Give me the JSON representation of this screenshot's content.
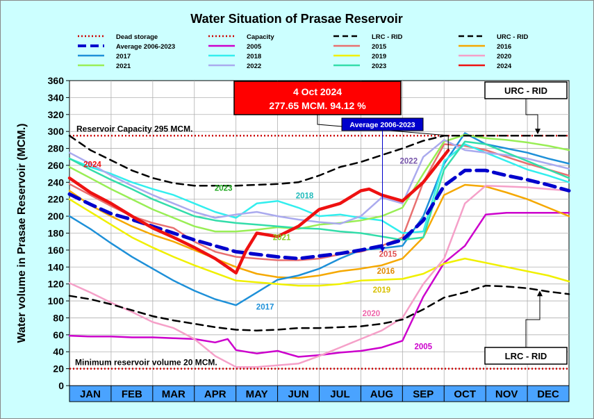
{
  "chart_data": {
    "type": "line",
    "title": "Water Situation of Prasae Reservoir",
    "ylabel": "Water volume in Prasae Reservoir (MCM.)",
    "xlabel": "",
    "ylim": [
      0,
      360
    ],
    "yticks": [
      0,
      20,
      40,
      60,
      80,
      100,
      120,
      140,
      160,
      180,
      200,
      220,
      240,
      260,
      280,
      300,
      320,
      340,
      360
    ],
    "categories": [
      "JAN",
      "FEB",
      "MAR",
      "APR",
      "MAY",
      "JUN",
      "JUL",
      "AUG",
      "SEP",
      "OCT",
      "NOV",
      "DEC"
    ],
    "x_unit": "month index (0 = start of JAN, 12 = end of DEC)",
    "grid": true,
    "legend_position": "top",
    "reference_lines": [
      {
        "name": "Dead storage",
        "y": 20,
        "color": "#cc0000",
        "style": "dotted"
      },
      {
        "name": "Capacity",
        "y": 295,
        "color": "#cc0000",
        "style": "dotted"
      }
    ],
    "series": [
      {
        "name": "Dead storage",
        "color": "#cc0000",
        "style": "dotted",
        "width": 2.5,
        "x": [
          0,
          12
        ],
        "y": [
          20,
          20
        ]
      },
      {
        "name": "Capacity",
        "color": "#cc0000",
        "style": "dotted",
        "width": 2.5,
        "x": [
          0,
          12
        ],
        "y": [
          295,
          295
        ]
      },
      {
        "name": "LRC - RID",
        "color": "#000000",
        "style": "dashed",
        "width": 2.5,
        "x": [
          0,
          0.5,
          1,
          1.5,
          2,
          2.5,
          3,
          3.5,
          4,
          4.5,
          5,
          5.5,
          6,
          6.5,
          7,
          7.5,
          8,
          8.5,
          9,
          9.5,
          10,
          10.5,
          11,
          11.5,
          12
        ],
        "y": [
          106,
          102,
          96,
          89,
          82,
          77,
          73,
          69,
          66,
          65,
          66,
          68,
          68,
          69,
          70,
          73,
          78,
          90,
          104,
          110,
          118,
          117,
          115,
          111,
          108
        ]
      },
      {
        "name": "URC - RID",
        "color": "#000000",
        "style": "dashed",
        "width": 2.5,
        "x": [
          0,
          0.5,
          1,
          1.5,
          2,
          2.5,
          3,
          3.5,
          4,
          4.5,
          5,
          5.5,
          6,
          6.5,
          7,
          7.5,
          8,
          8.5,
          9,
          9.5,
          10,
          10.5,
          11,
          11.5,
          12
        ],
        "y": [
          295,
          278,
          266,
          254,
          245,
          239,
          236,
          236,
          236,
          237,
          238,
          240,
          248,
          258,
          264,
          272,
          280,
          289,
          295,
          295,
          295,
          295,
          295,
          295,
          295
        ]
      },
      {
        "name": "Average 2006-2023",
        "color": "#0000cc",
        "style": "dashed-thick",
        "width": 5,
        "x": [
          0,
          0.5,
          1,
          1.5,
          2,
          2.5,
          3,
          3.5,
          4,
          4.5,
          5,
          5.5,
          6,
          6.5,
          7,
          7.5,
          8,
          8.5,
          9,
          9.5,
          10,
          10.5,
          11,
          11.5,
          12
        ],
        "y": [
          226,
          214,
          203,
          196,
          188,
          180,
          172,
          165,
          158,
          155,
          152,
          150,
          153,
          156,
          160,
          165,
          172,
          195,
          236,
          254,
          254,
          248,
          243,
          237,
          230
        ]
      },
      {
        "name": "2005",
        "color": "#cc00cc",
        "style": "solid",
        "width": 2.5,
        "x": [
          0,
          0.5,
          1,
          1.5,
          2,
          2.5,
          3,
          3.5,
          3.8,
          4,
          4.5,
          5,
          5.5,
          6,
          6.5,
          7,
          7.5,
          8,
          8.5,
          9,
          9.5,
          10,
          10.5,
          11,
          11.5,
          12
        ],
        "y": [
          59,
          58,
          58,
          57,
          57,
          56,
          55,
          51,
          55,
          42,
          38,
          41,
          34,
          36,
          39,
          41,
          45,
          53,
          105,
          145,
          165,
          202,
          204,
          204,
          204,
          204
        ]
      },
      {
        "name": "2015",
        "color": "#e87070",
        "style": "solid",
        "width": 2.5,
        "x": [
          0,
          0.5,
          1,
          1.5,
          2,
          2.5,
          3,
          3.5,
          4,
          4.5,
          5,
          5.5,
          6,
          6.5,
          7,
          7.5,
          8,
          8.5,
          9,
          9.5,
          10,
          10.5,
          11,
          11.5,
          12
        ],
        "y": [
          238,
          225,
          212,
          200,
          192,
          186,
          170,
          158,
          152,
          150,
          148,
          148,
          150,
          155,
          158,
          165,
          175,
          240,
          285,
          283,
          278,
          270,
          262,
          255,
          248
        ]
      },
      {
        "name": "2016",
        "color": "#f5a800",
        "style": "solid",
        "width": 2.5,
        "x": [
          0,
          0.5,
          1,
          1.5,
          2,
          2.5,
          3,
          3.5,
          4,
          4.5,
          5,
          5.5,
          6,
          6.5,
          7,
          7.5,
          8,
          8.5,
          9,
          9.5,
          10,
          10.5,
          11,
          11.5,
          12
        ],
        "y": [
          230,
          213,
          200,
          188,
          178,
          170,
          160,
          150,
          140,
          132,
          128,
          127,
          130,
          135,
          138,
          142,
          150,
          175,
          225,
          237,
          235,
          228,
          220,
          210,
          200
        ]
      },
      {
        "name": "2017",
        "color": "#1e90d8",
        "style": "solid",
        "width": 2.5,
        "x": [
          0,
          0.5,
          1,
          1.5,
          2,
          2.5,
          3,
          3.5,
          4,
          4.5,
          5,
          5.5,
          6,
          6.5,
          7,
          7.5,
          8,
          8.5,
          9,
          9.5,
          10,
          10.5,
          11,
          11.5,
          12
        ],
        "y": [
          200,
          185,
          168,
          152,
          138,
          124,
          112,
          102,
          95,
          110,
          125,
          130,
          138,
          150,
          160,
          162,
          165,
          200,
          262,
          298,
          285,
          280,
          275,
          268,
          262
        ]
      },
      {
        "name": "2018",
        "color": "#33eeee",
        "style": "solid",
        "width": 2.5,
        "x": [
          0,
          0.5,
          1,
          1.5,
          2,
          2.5,
          3,
          3.5,
          4,
          4.5,
          5,
          5.5,
          6,
          6.5,
          7,
          7.5,
          8,
          8.5,
          9,
          9.5,
          10,
          10.5,
          11,
          11.5,
          12
        ],
        "y": [
          268,
          258,
          250,
          240,
          232,
          225,
          215,
          205,
          198,
          215,
          218,
          210,
          200,
          202,
          198,
          195,
          180,
          182,
          265,
          285,
          275,
          265,
          255,
          248,
          240
        ]
      },
      {
        "name": "2019",
        "color": "#f0f000",
        "style": "solid",
        "width": 2.5,
        "x": [
          0,
          0.5,
          1,
          1.5,
          2,
          2.5,
          3,
          3.5,
          4,
          4.5,
          5,
          5.5,
          6,
          6.5,
          7,
          7.5,
          8,
          8.5,
          9,
          9.5,
          10,
          10.5,
          11,
          11.5,
          12
        ],
        "y": [
          220,
          205,
          190,
          175,
          163,
          152,
          142,
          133,
          124,
          122,
          120,
          118,
          118,
          120,
          124,
          125,
          126,
          132,
          144,
          150,
          145,
          140,
          135,
          130,
          123
        ]
      },
      {
        "name": "2020",
        "color": "#f5a0c8",
        "style": "solid",
        "width": 2.5,
        "x": [
          0,
          0.5,
          1,
          1.5,
          2,
          2.5,
          3,
          3.5,
          4,
          4.5,
          5,
          5.5,
          6,
          6.5,
          7,
          7.5,
          8,
          8.5,
          9,
          9.5,
          10,
          10.5,
          11,
          11.5,
          12
        ],
        "y": [
          121,
          110,
          98,
          87,
          75,
          68,
          55,
          35,
          22,
          22,
          24,
          26,
          35,
          45,
          55,
          65,
          80,
          120,
          150,
          215,
          236,
          235,
          234,
          232,
          230
        ]
      },
      {
        "name": "2021",
        "color": "#99ee55",
        "style": "solid",
        "width": 2.5,
        "x": [
          0,
          0.5,
          1,
          1.5,
          2,
          2.5,
          3,
          3.5,
          4,
          4.5,
          5,
          5.5,
          6,
          6.5,
          7,
          7.5,
          8,
          8.5,
          9,
          9.5,
          10,
          10.5,
          11,
          11.5,
          12
        ],
        "y": [
          258,
          245,
          232,
          220,
          208,
          198,
          188,
          182,
          182,
          184,
          187,
          185,
          190,
          192,
          195,
          200,
          210,
          250,
          288,
          296,
          292,
          290,
          287,
          283,
          278
        ]
      },
      {
        "name": "2022",
        "color": "#aaaaee",
        "style": "solid",
        "width": 2.5,
        "x": [
          0,
          0.5,
          1,
          1.5,
          2,
          2.5,
          3,
          3.5,
          4,
          4.5,
          5,
          5.5,
          6,
          6.5,
          7,
          7.5,
          8,
          8.5,
          9,
          9.5,
          10,
          10.5,
          11,
          11.5,
          12
        ],
        "y": [
          275,
          262,
          248,
          236,
          225,
          215,
          205,
          198,
          202,
          205,
          200,
          196,
          193,
          191,
          200,
          222,
          215,
          270,
          290,
          278,
          275,
          272,
          268,
          262,
          256
        ]
      },
      {
        "name": "2023",
        "color": "#33ddaa",
        "style": "solid",
        "width": 2.5,
        "x": [
          0,
          0.5,
          1,
          1.5,
          2,
          2.5,
          3,
          3.5,
          4,
          4.5,
          5,
          5.5,
          6,
          6.5,
          7,
          7.5,
          8,
          8.5,
          9,
          9.5,
          10,
          10.5,
          11,
          11.5,
          12
        ],
        "y": [
          268,
          255,
          243,
          232,
          220,
          210,
          200,
          195,
          192,
          190,
          188,
          186,
          185,
          182,
          180,
          176,
          172,
          175,
          255,
          288,
          285,
          275,
          265,
          255,
          245
        ]
      },
      {
        "name": "2024",
        "color": "#ee1111",
        "style": "solid",
        "width": 4.5,
        "x": [
          0,
          0.5,
          1,
          1.5,
          2,
          2.5,
          3,
          3.5,
          4,
          4.25,
          4.5,
          5,
          5.5,
          6,
          6.5,
          7,
          7.2,
          7.5,
          8,
          8.5,
          9.1
        ],
        "y": [
          245,
          228,
          215,
          200,
          186,
          175,
          163,
          150,
          133,
          160,
          180,
          176,
          188,
          208,
          215,
          230,
          232,
          225,
          218,
          240,
          277.65
        ]
      }
    ],
    "annotations": [
      {
        "text": "4 Oct 2024",
        "kind": "callout"
      },
      {
        "text": "277.65 MCM. 94.12 %",
        "kind": "callout"
      },
      {
        "text": "Average 2006-2023",
        "kind": "callout"
      },
      {
        "text": "URC - RID",
        "kind": "callout"
      },
      {
        "text": "LRC - RID",
        "kind": "callout"
      },
      {
        "text": "Reservoir Capacity 295 MCM.",
        "kind": "label"
      },
      {
        "text": "Minimum reservoir volume 20 MCM.",
        "kind": "label"
      }
    ]
  },
  "callouts": {
    "date": "4 Oct 2024",
    "value": "277.65 MCM. 94.12 %",
    "average": "Average 2006-2023",
    "urc": "URC - RID",
    "lrc": "LRC - RID"
  },
  "labels": {
    "capacity": "Reservoir Capacity 295 MCM.",
    "minimum": "Minimum reservoir volume 20 MCM."
  },
  "series_labels": [
    {
      "text": "2024",
      "color": "#ee1111"
    },
    {
      "text": "2023",
      "color": "#22aa22"
    },
    {
      "text": "2018",
      "color": "#22bbbb"
    },
    {
      "text": "2021",
      "color": "#88cc22"
    },
    {
      "text": "2022",
      "color": "#7755aa"
    },
    {
      "text": "2017",
      "color": "#1e90d8"
    },
    {
      "text": "2015",
      "color": "#e05050"
    },
    {
      "text": "2016",
      "color": "#e08a00"
    },
    {
      "text": "2019",
      "color": "#d8c000"
    },
    {
      "text": "2020",
      "color": "#ee66aa"
    },
    {
      "text": "2005",
      "color": "#cc00cc"
    }
  ],
  "colors": {
    "background": "#ccffff",
    "plot_background": "#ffffff",
    "axis_band": "#4aa3ff",
    "callout_red": "#ff0000",
    "callout_blue": "#0000cc"
  }
}
